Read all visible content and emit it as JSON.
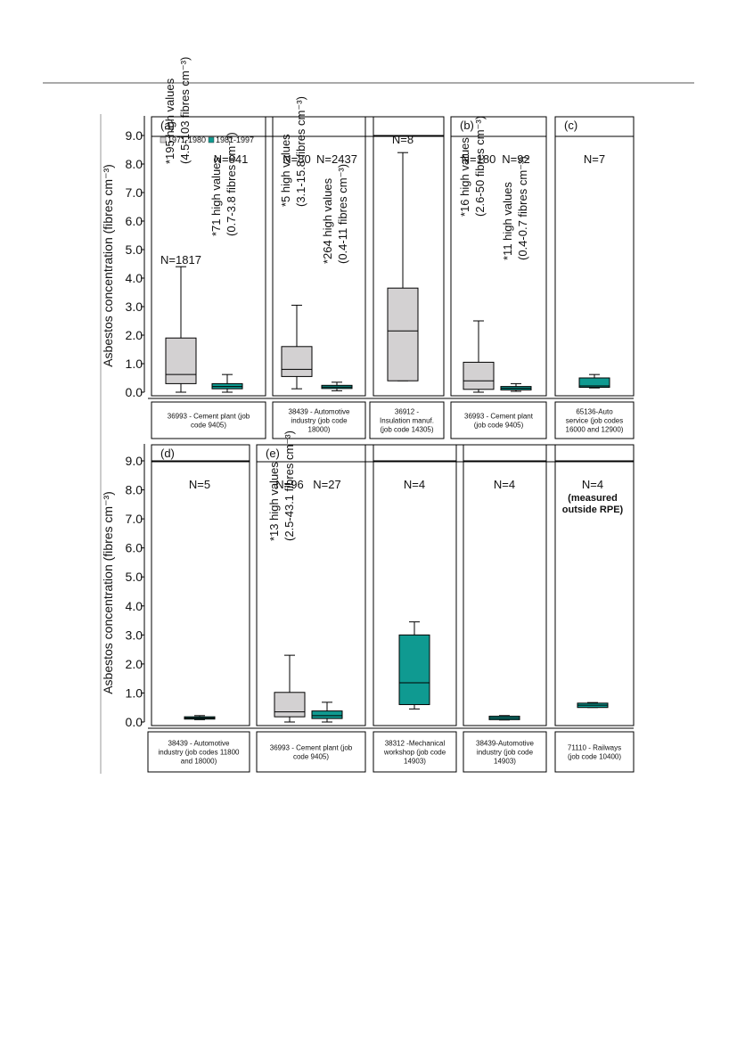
{
  "chart_data": {
    "type": "box",
    "ylabel": "Asbestos concentration (fibres cm⁻³)",
    "ylim": [
      0,
      9.0
    ],
    "yticks": [
      "9.0",
      "8.0",
      "7.0",
      "6.0",
      "5.0",
      "4.0",
      "3.0",
      "2.0",
      "1.0",
      "0.0"
    ],
    "legend": [
      {
        "label": "1971-1980",
        "color": "#d3d1d2"
      },
      {
        "label": "1981-1997",
        "color": "#0f9a91"
      }
    ],
    "panels": [
      {
        "label": "(a)",
        "caption": [
          "36993 - Cement plant (job",
          "code 9405)"
        ],
        "boxes": [
          {
            "series": "1971-1980",
            "n": "N=1817",
            "whisker_low": 0.0,
            "q1": 0.3,
            "median": 0.62,
            "q3": 1.9,
            "whisker_high": 4.4
          },
          {
            "series": "1981-1997",
            "n": "N=841",
            "whisker_low": 0.0,
            "q1": 0.12,
            "median": 0.2,
            "q3": 0.3,
            "whisker_high": 0.62
          }
        ],
        "annotations": [
          {
            "line1": "*195 high values",
            "line2": "(4.5-103 fibres cm⁻³)"
          },
          {
            "line1": "*71 high values",
            "line2": "(0.7-3.8 fibres cm⁻³)"
          }
        ]
      },
      {
        "label": "",
        "caption": [
          "38439 - Automotive",
          "industry (job code",
          "18000)"
        ],
        "boxes": [
          {
            "series": "1971-1980",
            "n": "N=80",
            "whisker_low": 0.12,
            "q1": 0.55,
            "median": 0.8,
            "q3": 1.6,
            "whisker_high": 3.05
          },
          {
            "series": "1981-1997",
            "n": "N=2437",
            "whisker_low": 0.05,
            "q1": 0.13,
            "median": 0.18,
            "q3": 0.24,
            "whisker_high": 0.35
          }
        ],
        "annotations": [
          {
            "line1": "*5 high values",
            "line2": "(3.1-15.8 fibres cm⁻³)"
          },
          {
            "line1": "*264 high values",
            "line2": "(0.4-11 fibres cm⁻³)"
          }
        ]
      },
      {
        "label": "",
        "caption": [
          "36912 -",
          "Insulation manuf.",
          "(job code 14305)"
        ],
        "boxes": [
          {
            "series": "1971-1980",
            "n": "N=8",
            "whisker_low": 0.4,
            "q1": 0.4,
            "median": 2.15,
            "q3": 3.65,
            "whisker_high": 8.4
          }
        ],
        "annotations": []
      },
      {
        "label": "(b)",
        "caption": [
          "36993 - Cement plant",
          "(job code 9405)"
        ],
        "boxes": [
          {
            "series": "1971-1980",
            "n": "N=180",
            "whisker_low": 0.0,
            "q1": 0.1,
            "median": 0.4,
            "q3": 1.05,
            "whisker_high": 2.5
          },
          {
            "series": "1981-1997",
            "n": "N=92",
            "whisker_low": 0.03,
            "q1": 0.08,
            "median": 0.14,
            "q3": 0.2,
            "whisker_high": 0.3
          }
        ],
        "annotations": [
          {
            "line1": "*16 high values",
            "line2": "(2.6-50 fibres cm⁻³)"
          },
          {
            "line1": "*11 high values",
            "line2": "(0.4-0.7 fibres cm⁻³)"
          }
        ]
      },
      {
        "label": "(c)",
        "caption": [
          "65136-Auto",
          "service (job codes",
          "16000 and 12900)"
        ],
        "boxes": [
          {
            "series": "1981-1997",
            "n": "N=7",
            "whisker_low": 0.15,
            "q1": 0.17,
            "median": 0.22,
            "q3": 0.5,
            "whisker_high": 0.62
          }
        ],
        "annotations": []
      },
      {
        "label": "(d)",
        "caption": [
          "38439 - Automotive",
          "industry (job codes 11800",
          "and 18000)"
        ],
        "boxes": [
          {
            "series": "1981-1997",
            "n": "N=5",
            "whisker_low": 0.08,
            "q1": 0.1,
            "median": 0.14,
            "q3": 0.18,
            "whisker_high": 0.22
          }
        ],
        "annotations": []
      },
      {
        "label": "(e)",
        "caption": [
          "36993 - Cement plant (job",
          "code 9405)"
        ],
        "boxes": [
          {
            "series": "1971-1980",
            "n": "N=96",
            "whisker_low": 0.0,
            "q1": 0.18,
            "median": 0.35,
            "q3": 1.02,
            "whisker_high": 2.3
          },
          {
            "series": "1981-1997",
            "n": "N=27",
            "whisker_low": 0.0,
            "q1": 0.12,
            "median": 0.22,
            "q3": 0.38,
            "whisker_high": 0.68
          }
        ],
        "annotations": [
          {
            "line1": "*13 high values",
            "line2": "(2.5-43.1 fibres cm⁻³)"
          }
        ]
      },
      {
        "label": "",
        "caption": [
          "38312 -Mechanical",
          "workshop (job code",
          "14903)"
        ],
        "boxes": [
          {
            "series": "1981-1997",
            "n": "N=4",
            "whisker_low": 0.45,
            "q1": 0.6,
            "median": 1.35,
            "q3": 3.0,
            "whisker_high": 3.45
          }
        ],
        "annotations": []
      },
      {
        "label": "",
        "caption": [
          "38439-Automotive",
          "industry (job code",
          "14903)"
        ],
        "boxes": [
          {
            "series": "1981-1997",
            "n": "N=4",
            "whisker_low": 0.07,
            "q1": 0.08,
            "median": 0.14,
            "q3": 0.2,
            "whisker_high": 0.22
          }
        ],
        "annotations": []
      },
      {
        "label": "",
        "caption": [
          "71110 - Railways",
          "(job code 10400)"
        ],
        "boxes": [
          {
            "series": "1981-1997",
            "n": "N=4",
            "n_note": [
              "(measured",
              "outside RPE)"
            ],
            "whisker_low": 0.5,
            "q1": 0.5,
            "median": 0.58,
            "q3": 0.65,
            "whisker_high": 0.67
          }
        ],
        "annotations": []
      }
    ]
  }
}
